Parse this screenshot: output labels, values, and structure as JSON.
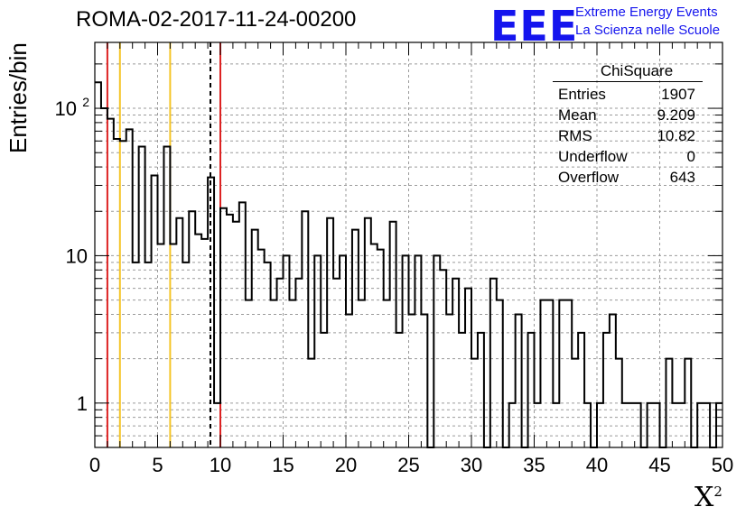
{
  "chart_data": {
    "type": "bar",
    "style": "step-histogram",
    "title": "ROMA-02-2017-11-24-00200",
    "xlabel": "X",
    "xlabel_sup": "2",
    "ylabel": "Entries/bin",
    "xlim": [
      0,
      50
    ],
    "ylim": [
      0.5,
      280
    ],
    "yscale": "log",
    "grid": true,
    "bin_width": 0.5,
    "x_ticks": [
      "0",
      "5",
      "10",
      "15",
      "20",
      "25",
      "30",
      "35",
      "40",
      "45",
      "50"
    ],
    "y_ticks": [
      {
        "v": 1,
        "label": "1"
      },
      {
        "v": 10,
        "label": "10"
      },
      {
        "v": 100,
        "label": "10",
        "sup": "2"
      }
    ],
    "values": [
      150,
      100,
      85,
      62,
      60,
      72,
      9,
      55,
      9,
      35,
      12,
      55,
      12,
      18,
      9,
      20,
      14,
      13,
      34,
      1,
      21,
      19,
      17,
      23,
      5,
      15,
      11,
      9,
      5,
      7,
      10,
      5,
      7,
      20,
      2,
      10,
      3,
      18,
      7,
      10,
      4,
      15,
      5,
      18,
      12,
      11,
      5,
      17,
      3,
      10,
      4,
      10,
      4,
      0,
      10,
      8,
      4,
      7,
      3,
      6,
      2,
      3,
      0,
      7,
      5,
      0,
      1,
      4,
      0,
      3,
      1,
      5,
      5,
      1,
      5,
      5,
      2,
      3,
      1,
      0,
      1,
      3,
      4,
      2,
      1,
      1,
      1,
      0,
      1,
      1,
      0,
      2,
      1,
      1,
      2,
      0,
      1,
      1,
      0,
      1
    ],
    "markers": [
      {
        "x": 1.0,
        "color": "#dd2222",
        "style": "solid"
      },
      {
        "x": 2.0,
        "color": "#f5c526",
        "style": "solid"
      },
      {
        "x": 6.0,
        "color": "#f5c526",
        "style": "solid"
      },
      {
        "x": 9.209,
        "color": "#000000",
        "style": "dashed"
      },
      {
        "x": 10.0,
        "color": "#dd2222",
        "style": "solid"
      }
    ]
  },
  "stats": {
    "name": "ChiSquare",
    "rows": [
      {
        "label": "Entries",
        "value": "1907"
      },
      {
        "label": "Mean",
        "value": "9.209"
      },
      {
        "label": "RMS",
        "value": "10.82"
      },
      {
        "label": "Underflow",
        "value": "0"
      },
      {
        "label": "Overflow",
        "value": "643"
      }
    ]
  },
  "logo": {
    "mark": "EEE",
    "line1": "Extreme Energy Events",
    "line2": "La Scienza nelle Scuole"
  }
}
